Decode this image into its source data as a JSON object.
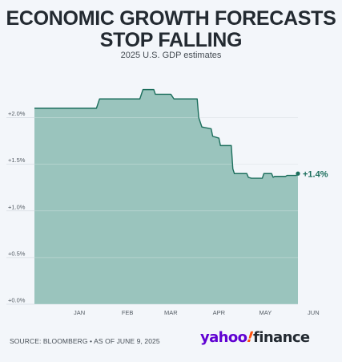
{
  "title_lines": [
    "ECONOMIC GROWTH FORECASTS",
    "STOP FALLING"
  ],
  "subtitle": "2025 U.S. GDP estimates",
  "source": "SOURCE: BLOOMBERG • AS OF JUNE 9, 2025",
  "logo": {
    "part1": "yahoo",
    "slash": "!",
    "part2": "finance",
    "brand_purple": "#6001d2",
    "brand_orange": "#ff520d"
  },
  "colors": {
    "area_fill": "#9ac4bd",
    "line": "#1b6e5c",
    "end_label": "#1b6e5c"
  },
  "chart_data": {
    "type": "area",
    "title": "ECONOMIC GROWTH FORECASTS STOP FALLING",
    "subtitle": "2025 U.S. GDP estimates",
    "x_unit": "days since Jan 1, 2025",
    "ylim": [
      0,
      2.4
    ],
    "y_ticks": [
      0,
      0.5,
      1.0,
      1.5,
      2.0
    ],
    "y_tick_labels": [
      "+0.0%",
      "+0.5%",
      "+1.0%",
      "+1.5%",
      "+2.0%"
    ],
    "x_ticks": [
      {
        "label": "JAN",
        "x": 15
      },
      {
        "label": "FEB",
        "x": 46
      },
      {
        "label": "MAR",
        "x": 74
      },
      {
        "label": "APR",
        "x": 105
      },
      {
        "label": "MAY",
        "x": 135
      },
      {
        "label": "JUN",
        "x": 166
      }
    ],
    "points": [
      [
        -14,
        2.1
      ],
      [
        26,
        2.1
      ],
      [
        28,
        2.2
      ],
      [
        44,
        2.2
      ],
      [
        54,
        2.2
      ],
      [
        56,
        2.3
      ],
      [
        63,
        2.3
      ],
      [
        64,
        2.25
      ],
      [
        74,
        2.25
      ],
      [
        76,
        2.2
      ],
      [
        91,
        2.2
      ],
      [
        92,
        2.0
      ],
      [
        94,
        1.9
      ],
      [
        100,
        1.88
      ],
      [
        101,
        1.8
      ],
      [
        105,
        1.78
      ],
      [
        106,
        1.7
      ],
      [
        113,
        1.7
      ],
      [
        114,
        1.45
      ],
      [
        115,
        1.4
      ],
      [
        123,
        1.4
      ],
      [
        124,
        1.36
      ],
      [
        126,
        1.35
      ],
      [
        133,
        1.35
      ],
      [
        134,
        1.4
      ],
      [
        139,
        1.4
      ],
      [
        140,
        1.36
      ],
      [
        141,
        1.37
      ],
      [
        148,
        1.37
      ],
      [
        149,
        1.38
      ],
      [
        155,
        1.38
      ],
      [
        156,
        1.4
      ]
    ],
    "end_label": "+1.4%",
    "grid": "horizontal",
    "legend": "none"
  }
}
